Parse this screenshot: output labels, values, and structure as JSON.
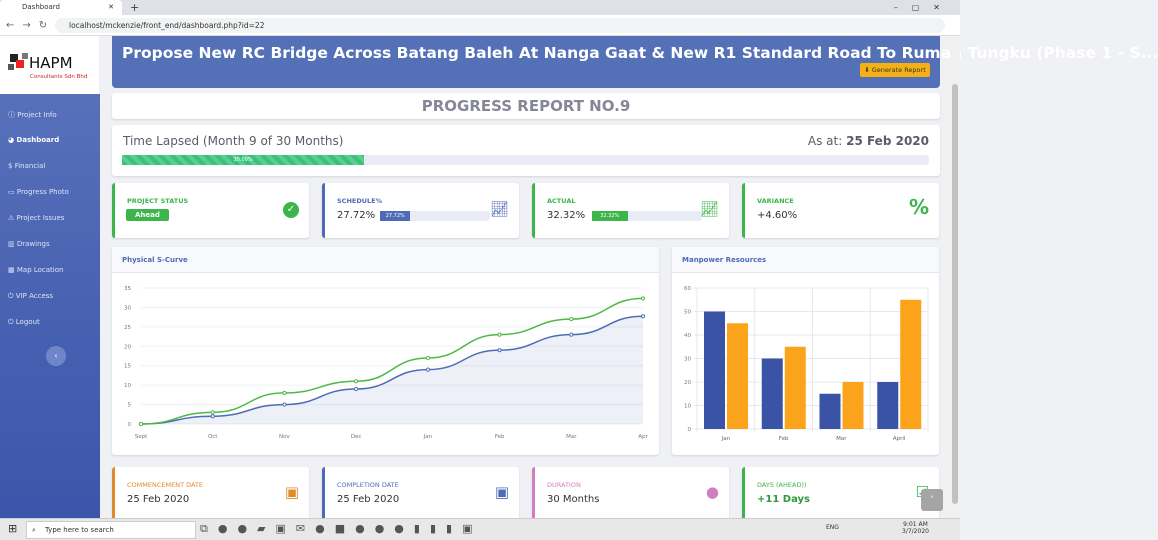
{
  "browser": {
    "tab_title": "Dashboard",
    "url": "localhost/mckenzie/front_end/dashboard.php?id=22"
  },
  "sidebar": {
    "logo_text": "HAPM",
    "logo_sub": "Consultants Sdn Bhd",
    "items": [
      {
        "label": "Project Info",
        "icon": "ⓘ"
      },
      {
        "label": "Dashboard",
        "icon": "◕"
      },
      {
        "label": "Financial",
        "icon": "$"
      },
      {
        "label": "Progress Photo",
        "icon": "▭"
      },
      {
        "label": "Project Issues",
        "icon": "⚠"
      },
      {
        "label": "Drawings",
        "icon": "▥"
      },
      {
        "label": "Map Location",
        "icon": "▦"
      },
      {
        "label": "VIP Access",
        "icon": "⏻"
      },
      {
        "label": "Logout",
        "icon": "⏻"
      }
    ],
    "active": "Dashboard",
    "collapse": "‹"
  },
  "header": {
    "title": "Propose New RC Bridge Across Batang Baleh At Nanga Gaat & New R1 Standard Road To Rumah Tungku (Phase 1 - S...",
    "generate_button": "Generate Report"
  },
  "report_title": "PROGRESS REPORT NO.9",
  "time_lapsed": {
    "label": "Time Lapsed (Month 9 of 30 Months)",
    "as_at_label": "As at:",
    "as_at_date": "25 Feb 2020",
    "progress_label": "30.00%",
    "progress": 30
  },
  "stats": {
    "status": {
      "label": "PROJECT STATUS",
      "badge": "Ahead"
    },
    "schedule": {
      "label": "SCHEDULE%",
      "value": "27.72%",
      "bar_label": "27.72%",
      "progress": 27.72
    },
    "actual": {
      "label": "ACTUAL",
      "value": "32.32%",
      "bar_label": "32.32%",
      "progress": 32.32
    },
    "variance": {
      "label": "VARIANCE",
      "value": "+4.60%",
      "icon": "%"
    }
  },
  "colors": {
    "primary": "#4e6bb5",
    "success": "#3cb54a",
    "orange": "#f6a21e",
    "navy": "#3a53a4"
  },
  "chart_data": [
    {
      "type": "line",
      "title": "Physical S-Curve",
      "categories": [
        "Sept",
        "Oct",
        "Nov",
        "Dec",
        "Jan",
        "Feb",
        "Mar",
        "Apr"
      ],
      "ylim": [
        0,
        35
      ],
      "yticks": [
        "0",
        "5",
        "10",
        "15",
        "20",
        "25",
        "30",
        "35"
      ],
      "grid": true,
      "series": [
        {
          "values": [
            0,
            2,
            5,
            9,
            14,
            19,
            23,
            27.72
          ],
          "color": "#4e6bb5",
          "fill": true
        },
        {
          "values": [
            0,
            3,
            8,
            11,
            17,
            23,
            27,
            32.32
          ],
          "color": "#4cb944",
          "fill": false
        }
      ]
    },
    {
      "type": "bar",
      "title": "Manpower Resources",
      "categories": [
        "Jan",
        "Feb",
        "Mar",
        "April"
      ],
      "ylim": [
        0,
        60
      ],
      "yticks": [
        "0",
        "10",
        "20",
        "30",
        "40",
        "50",
        "60"
      ],
      "grid": true,
      "series": [
        {
          "values": [
            50,
            30,
            15,
            20
          ],
          "color": "#3a53a4"
        },
        {
          "values": [
            45,
            35,
            20,
            55
          ],
          "color": "#fba41b"
        }
      ]
    }
  ],
  "bottom": {
    "commencement": {
      "label": "COMMENCEMENT DATE",
      "value": "25 Feb 2020",
      "color": "#e08a2c"
    },
    "completion": {
      "label": "COMPLETION DATE",
      "value": "25 Feb 2020",
      "color": "#4e6bb5"
    },
    "duration": {
      "label": "DURATION",
      "value": "30  Months",
      "color": "#d07ec0"
    },
    "days": {
      "label": "DAYS (AHEAD))",
      "value": "+11 Days",
      "color": "#3cb54a"
    }
  },
  "taskbar": {
    "search_placeholder": "Type here to search",
    "time": "9:01 AM",
    "date": "3/7/2020",
    "lang": "ENG"
  }
}
